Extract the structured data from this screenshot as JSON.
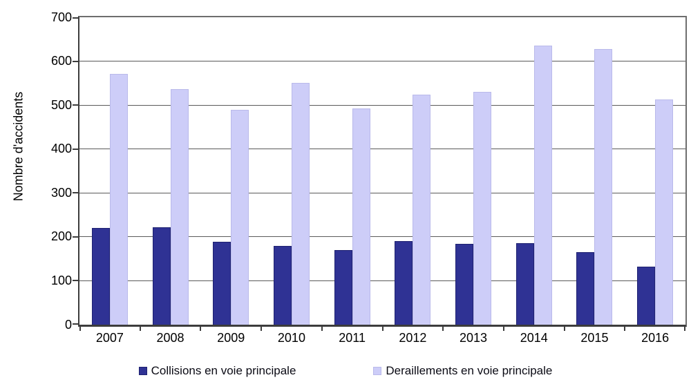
{
  "chart_data": {
    "type": "bar",
    "title": "",
    "xlabel": "",
    "ylabel": "Nombre d'accidents",
    "categories": [
      "2007",
      "2008",
      "2009",
      "2010",
      "2011",
      "2012",
      "2013",
      "2014",
      "2015",
      "2016"
    ],
    "series": [
      {
        "name": "Collisions en voie principale",
        "color": "#2f3294",
        "border_color": "#1e2170",
        "values": [
          220,
          222,
          188,
          179,
          170,
          191,
          184,
          186,
          165,
          132
        ]
      },
      {
        "name": "Deraillements en voie principale",
        "color": "#cdcdf8",
        "border_color": "#b9b9ea",
        "values": [
          571,
          537,
          490,
          551,
          493,
          524,
          530,
          636,
          628,
          513
        ]
      }
    ],
    "ylim": [
      0,
      700
    ],
    "yticks": [
      0,
      100,
      200,
      300,
      400,
      500,
      600,
      700
    ],
    "grid": true,
    "legend_position": "bottom"
  },
  "colors": {
    "background": "#ffffff",
    "gridline": "#595959",
    "axis": "#3c3c3c",
    "text": "#000000"
  }
}
